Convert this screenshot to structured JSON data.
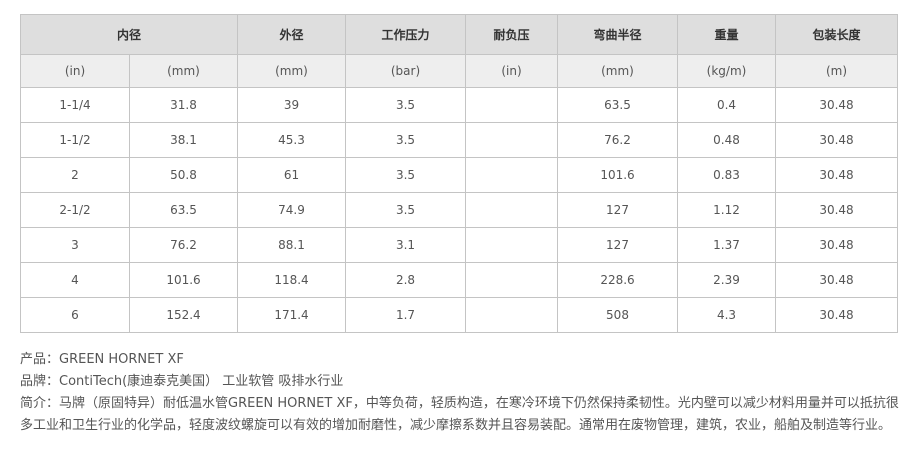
{
  "table": {
    "headers": [
      {
        "label": "内径",
        "colspan": 2
      },
      {
        "label": "外径",
        "colspan": 1
      },
      {
        "label": "工作压力",
        "colspan": 1
      },
      {
        "label": "耐负压",
        "colspan": 1
      },
      {
        "label": "弯曲半径",
        "colspan": 1
      },
      {
        "label": "重量",
        "colspan": 1
      },
      {
        "label": "包装长度",
        "colspan": 1
      }
    ],
    "units": [
      "(in)",
      "(mm)",
      "(mm)",
      "(bar)",
      "(in)",
      "(mm)",
      "(kg/m)",
      "(m)"
    ],
    "rows": [
      [
        "1-1/4",
        "31.8",
        "39",
        "3.5",
        "",
        "63.5",
        "0.4",
        "30.48"
      ],
      [
        "1-1/2",
        "38.1",
        "45.3",
        "3.5",
        "",
        "76.2",
        "0.48",
        "30.48"
      ],
      [
        "2",
        "50.8",
        "61",
        "3.5",
        "",
        "101.6",
        "0.83",
        "30.48"
      ],
      [
        "2-1/2",
        "63.5",
        "74.9",
        "3.5",
        "",
        "127",
        "1.12",
        "30.48"
      ],
      [
        "3",
        "76.2",
        "88.1",
        "3.1",
        "",
        "127",
        "1.37",
        "30.48"
      ],
      [
        "4",
        "101.6",
        "118.4",
        "2.8",
        "",
        "228.6",
        "2.39",
        "30.48"
      ],
      [
        "6",
        "152.4",
        "171.4",
        "1.7",
        "",
        "508",
        "4.3",
        "30.48"
      ]
    ]
  },
  "description": {
    "product": "产品：GREEN HORNET XF",
    "brand": "品牌：ContiTech(康迪泰克美国） 工业软管 吸排水行业",
    "intro": "简介：马牌（原固特异）耐低温水管GREEN HORNET XF，中等负荷，轻质构造，在寒冷环境下仍然保持柔韧性。光内壁可以减少材料用量并可以抵抗很多工业和卫生行业的化学品，轻度波纹螺旋可以有效的增加耐磨性，减少摩擦系数并且容易装配。通常用在废物管理，建筑，农业，船舶及制造等行业。"
  }
}
